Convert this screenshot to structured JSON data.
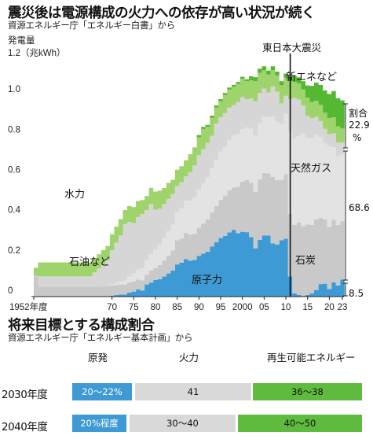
{
  "title": "震災後は電源構成の火力への依存が高い状況が続く",
  "source1": "資源エネルギー庁「エネルギー白書」から",
  "chart_data": {
    "type": "area",
    "ylabel": "発電量",
    "y_top_label": "1.2（兆kWh）",
    "yticks": [
      "0",
      "0.2",
      "0.4",
      "0.6",
      "0.8",
      "1.0"
    ],
    "ylim": [
      0,
      1.2
    ],
    "xlim": [
      1952,
      2023
    ],
    "xticks": [
      {
        "x": 1952,
        "label": "1952年度"
      },
      {
        "x": 1970,
        "label": "70"
      },
      {
        "x": 1975,
        "label": "75"
      },
      {
        "x": 1980,
        "label": "80"
      },
      {
        "x": 1985,
        "label": "85"
      },
      {
        "x": 1990,
        "label": "90"
      },
      {
        "x": 1995,
        "label": "95"
      },
      {
        "x": 2000,
        "label": "2000"
      },
      {
        "x": 2005,
        "label": "05"
      },
      {
        "x": 2010,
        "label": "10"
      },
      {
        "x": 2015,
        "label": "15"
      },
      {
        "x": 2020,
        "label": "20"
      },
      {
        "x": 2023,
        "label": "23"
      }
    ],
    "years": [
      1952,
      1965,
      1966,
      1967,
      1968,
      1969,
      1970,
      1971,
      1972,
      1973,
      1974,
      1975,
      1976,
      1977,
      1978,
      1979,
      1980,
      1981,
      1982,
      1983,
      1984,
      1985,
      1986,
      1987,
      1988,
      1989,
      1990,
      1991,
      1992,
      1993,
      1994,
      1995,
      1996,
      1997,
      1998,
      1999,
      2000,
      2001,
      2002,
      2003,
      2004,
      2005,
      2006,
      2007,
      2008,
      2009,
      2010,
      2011,
      2012,
      2013,
      2014,
      2015,
      2016,
      2017,
      2018,
      2019,
      2020,
      2021,
      2022,
      2023
    ],
    "series": [
      {
        "name": "原子力",
        "values": [
          0,
          0,
          0,
          0,
          0.001,
          0.001,
          0.005,
          0.008,
          0.01,
          0.01,
          0.02,
          0.025,
          0.035,
          0.03,
          0.06,
          0.07,
          0.082,
          0.087,
          0.1,
          0.115,
          0.13,
          0.16,
          0.168,
          0.187,
          0.178,
          0.182,
          0.202,
          0.213,
          0.223,
          0.249,
          0.27,
          0.291,
          0.302,
          0.319,
          0.332,
          0.316,
          0.322,
          0.32,
          0.295,
          0.24,
          0.282,
          0.304,
          0.303,
          0.264,
          0.258,
          0.28,
          0.288,
          0.101,
          0.016,
          0.009,
          0,
          0.009,
          0.017,
          0.033,
          0.062,
          0.064,
          0.037,
          0.071,
          0.056,
          0.085
        ]
      },
      {
        "name": "石炭",
        "values": [
          0.1,
          0.05,
          0.05,
          0.05,
          0.05,
          0.05,
          0.05,
          0.05,
          0.05,
          0.05,
          0.05,
          0.05,
          0.05,
          0.05,
          0.05,
          0.06,
          0.06,
          0.07,
          0.08,
          0.09,
          0.1,
          0.12,
          0.12,
          0.13,
          0.13,
          0.13,
          0.14,
          0.15,
          0.16,
          0.17,
          0.18,
          0.19,
          0.2,
          0.21,
          0.21,
          0.23,
          0.25,
          0.26,
          0.27,
          0.28,
          0.3,
          0.31,
          0.31,
          0.33,
          0.32,
          0.3,
          0.32,
          0.31,
          0.34,
          0.36,
          0.35,
          0.35,
          0.34,
          0.35,
          0.33,
          0.32,
          0.31,
          0.31,
          0.3,
          0.29
        ]
      },
      {
        "name": "天然ガス",
        "values": [
          0,
          0,
          0,
          0,
          0,
          0,
          0.005,
          0.01,
          0.015,
          0.02,
          0.03,
          0.04,
          0.05,
          0.06,
          0.07,
          0.08,
          0.09,
          0.1,
          0.11,
          0.12,
          0.13,
          0.14,
          0.15,
          0.16,
          0.17,
          0.18,
          0.19,
          0.2,
          0.21,
          0.22,
          0.23,
          0.24,
          0.24,
          0.25,
          0.26,
          0.26,
          0.26,
          0.26,
          0.27,
          0.28,
          0.28,
          0.28,
          0.28,
          0.3,
          0.29,
          0.28,
          0.3,
          0.41,
          0.43,
          0.43,
          0.46,
          0.43,
          0.43,
          0.42,
          0.4,
          0.38,
          0.4,
          0.36,
          0.34,
          0.33
        ]
      },
      {
        "name": "石油など",
        "values": [
          0.003,
          0.05,
          0.07,
          0.09,
          0.11,
          0.13,
          0.17,
          0.2,
          0.23,
          0.28,
          0.27,
          0.25,
          0.26,
          0.27,
          0.25,
          0.25,
          0.2,
          0.18,
          0.17,
          0.16,
          0.15,
          0.13,
          0.13,
          0.12,
          0.14,
          0.16,
          0.17,
          0.17,
          0.17,
          0.16,
          0.18,
          0.17,
          0.17,
          0.16,
          0.15,
          0.16,
          0.16,
          0.14,
          0.15,
          0.17,
          0.15,
          0.14,
          0.12,
          0.15,
          0.15,
          0.1,
          0.09,
          0.16,
          0.2,
          0.18,
          0.14,
          0.11,
          0.1,
          0.09,
          0.08,
          0.07,
          0.06,
          0.07,
          0.07,
          0.06
        ]
      },
      {
        "name": "水力",
        "values": [
          0.04,
          0.07,
          0.07,
          0.07,
          0.07,
          0.07,
          0.08,
          0.08,
          0.08,
          0.07,
          0.08,
          0.08,
          0.08,
          0.07,
          0.07,
          0.08,
          0.09,
          0.09,
          0.08,
          0.08,
          0.07,
          0.08,
          0.08,
          0.08,
          0.09,
          0.09,
          0.09,
          0.1,
          0.08,
          0.09,
          0.08,
          0.08,
          0.09,
          0.09,
          0.09,
          0.09,
          0.09,
          0.09,
          0.09,
          0.1,
          0.1,
          0.09,
          0.09,
          0.08,
          0.08,
          0.09,
          0.09,
          0.09,
          0.08,
          0.08,
          0.08,
          0.09,
          0.08,
          0.08,
          0.08,
          0.08,
          0.08,
          0.08,
          0.08,
          0.07
        ]
      },
      {
        "name": "新エネなど",
        "values": [
          0,
          0,
          0,
          0,
          0,
          0,
          0,
          0,
          0,
          0,
          0,
          0,
          0,
          0,
          0,
          0,
          0,
          0,
          0,
          0,
          0,
          0,
          0,
          0,
          0,
          0,
          0.01,
          0.01,
          0.01,
          0.01,
          0.01,
          0.01,
          0.01,
          0.01,
          0.01,
          0.01,
          0.01,
          0.01,
          0.02,
          0.02,
          0.02,
          0.02,
          0.02,
          0.02,
          0.02,
          0.02,
          0.02,
          0.02,
          0.03,
          0.03,
          0.04,
          0.06,
          0.08,
          0.09,
          0.1,
          0.11,
          0.12,
          0.13,
          0.14,
          0.14
        ]
      }
    ],
    "colors": {
      "原子力": "#3d9ad4",
      "石炭": "#c9c9c9",
      "天然ガス": "#e3e3e3",
      "石油など": "#d6d6d6",
      "水力": "#9fd36b",
      "新エネなど": "#55b832",
      "earthquake_line": "#111111"
    },
    "labels": {
      "earthquake": "東日本大震災",
      "hydro": "水力",
      "oil": "石油など",
      "nuclear": "原子力",
      "gas": "天然ガス",
      "coal": "石炭",
      "new_energy": "新エネなど",
      "share_title": "割合",
      "share_value": "22.9",
      "share_unit": "%",
      "val_fossil": "68.6",
      "val_nuclear": "8.5"
    }
  },
  "section2": {
    "title": "将来目標とする構成割合",
    "source": "資源エネルギー庁「エネルギー基本計画」から",
    "headers": {
      "nuclear": "原発",
      "thermal": "火力",
      "renewable": "再生可能エネルギー"
    },
    "rows": [
      {
        "label": "2030年度",
        "nuclear": "20〜22%",
        "thermal": "41",
        "renewable": "36〜38"
      },
      {
        "label": "2040年度",
        "nuclear": "20%程度",
        "thermal": "30〜40",
        "renewable": "40〜50"
      }
    ]
  }
}
